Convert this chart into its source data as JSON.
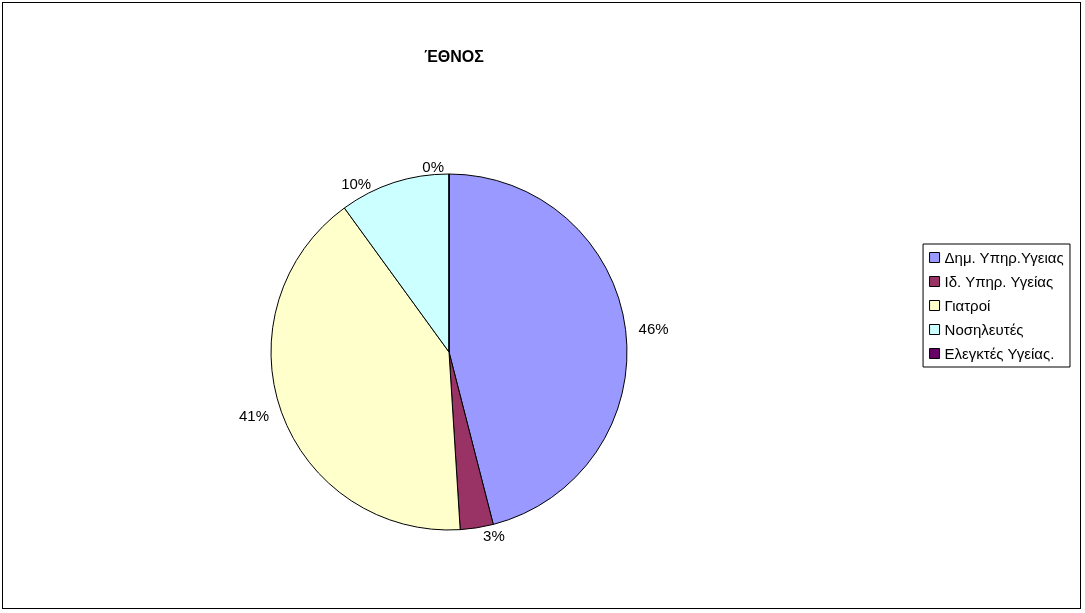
{
  "chart_data": {
    "type": "pie",
    "title": "ΈΘΝΟΣ",
    "categories": [
      "Δημ. Υπηρ.Υγειας",
      "Ιδ. Υπηρ. Υγείας",
      "Γιατροί",
      "Νοσηλευτές",
      "Ελεγκτές Υγείας."
    ],
    "values": [
      46,
      3,
      41,
      10,
      0
    ],
    "value_labels": [
      "46%",
      "3%",
      "41%",
      "10%",
      "0%"
    ],
    "colors": [
      "#9999ff",
      "#993366",
      "#ffffcc",
      "#ccffff",
      "#660066"
    ],
    "legend": "right"
  }
}
